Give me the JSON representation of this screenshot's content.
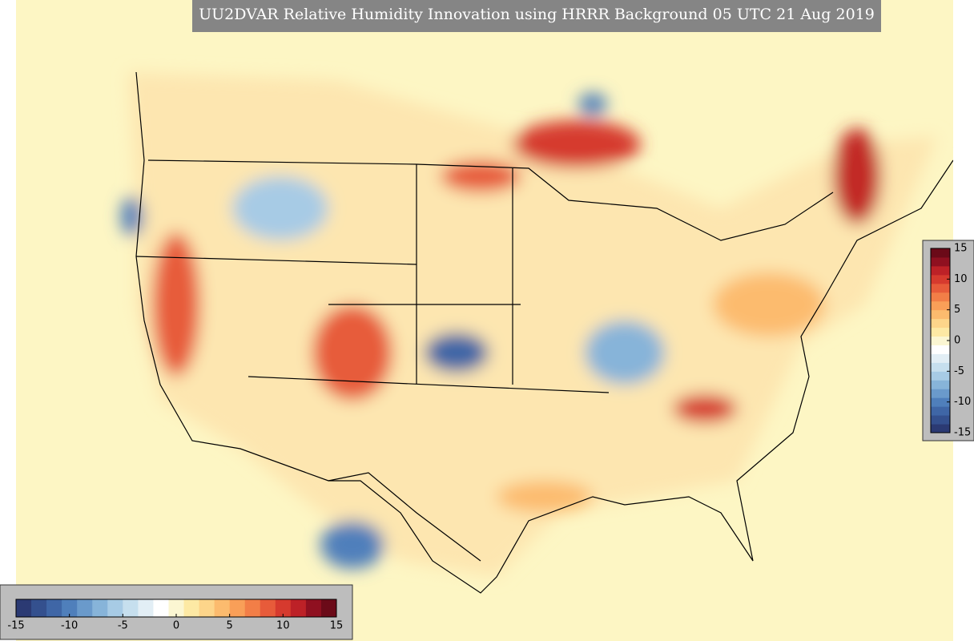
{
  "title": "UU2DVAR Relative Humidity Innovation using HRRR Background 05 UTC 21 Aug 2019",
  "colormap": [
    "#2b3a73",
    "#34508e",
    "#3f66a6",
    "#4f7fbb",
    "#6a9acb",
    "#87b4d9",
    "#a7cbe5",
    "#c6dfee",
    "#e2eef5",
    "#ffffff",
    "#fbf6d2",
    "#fde9a4",
    "#fdd58a",
    "#fcbb6e",
    "#f99f58",
    "#f27e47",
    "#e75b3a",
    "#d63a2e",
    "#bd2127",
    "#8f1020",
    "#6b0a18"
  ],
  "colorbars": [
    {
      "orientation": "horizontal",
      "lim": [
        -15,
        15
      ],
      "ticks": [
        -15,
        -10,
        -5,
        0,
        5,
        10,
        15
      ]
    },
    {
      "orientation": "vertical",
      "lim": [
        -15,
        15
      ],
      "ticks": [
        -15,
        -10,
        -5,
        0,
        5,
        10,
        15
      ]
    }
  ]
}
